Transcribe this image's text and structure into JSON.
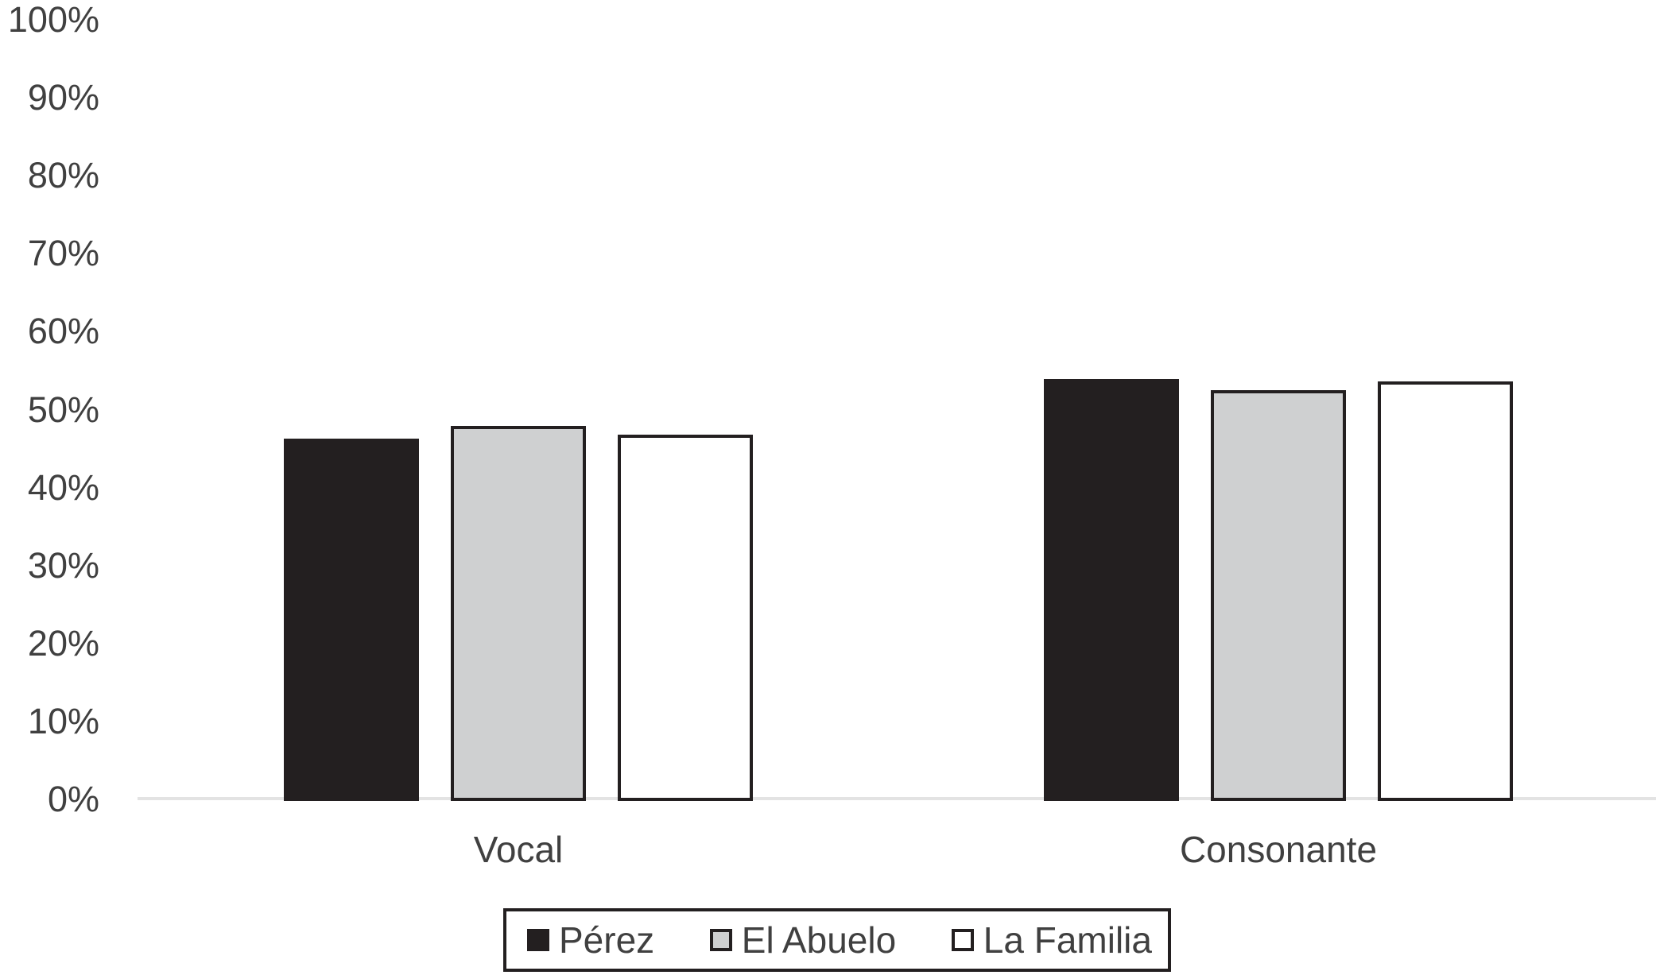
{
  "chart_data": {
    "type": "bar",
    "title": "",
    "xlabel": "",
    "ylabel": "",
    "categories": [
      "Vocal",
      "Consonante"
    ],
    "series": [
      {
        "name": "Pérez",
        "values": [
          46.3,
          53.9
        ],
        "fill": "#231f20",
        "border": "#231f20"
      },
      {
        "name": "El Abuelo",
        "values": [
          47.9,
          52.5
        ],
        "fill": "#cfd0d1",
        "border": "#231f20"
      },
      {
        "name": "La Familia",
        "values": [
          46.8,
          53.6
        ],
        "fill": "#ffffff",
        "border": "#231f20"
      }
    ],
    "ylim": [
      0,
      100
    ],
    "ytick_step": 10,
    "ytick_labels": [
      "0%",
      "10%",
      "20%",
      "30%",
      "40%",
      "50%",
      "60%",
      "70%",
      "80%",
      "90%",
      "100%"
    ],
    "grid": false,
    "legend_position": "bottom",
    "colors": {
      "axis_line": "#e3e3e3",
      "text": "#404040",
      "bar_outline": "#231f20"
    }
  }
}
